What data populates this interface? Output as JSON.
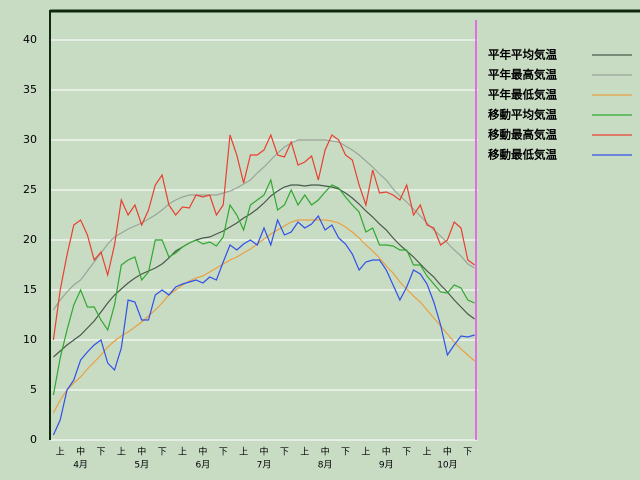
{
  "chart_data": {
    "type": "line",
    "categories": [
      null,
      "上",
      null,
      null,
      "中",
      null,
      null,
      "下",
      null,
      null,
      "上",
      null,
      null,
      "中",
      null,
      null,
      "下",
      null,
      null,
      "上",
      null,
      null,
      "中",
      null,
      null,
      "下",
      null,
      null,
      "上",
      null,
      null,
      "中",
      null,
      null,
      "下",
      null,
      null,
      "上",
      null,
      null,
      "中",
      null,
      null,
      "下",
      null,
      null,
      "上",
      null,
      null,
      "中",
      null,
      null,
      "下",
      null,
      null,
      "上",
      null,
      null,
      "中",
      null,
      null,
      "下",
      null
    ],
    "months": [
      "4月",
      "5月",
      "6月",
      "7月",
      "8月",
      "9月",
      "10月"
    ],
    "ylim": [
      0,
      43
    ],
    "yticks": [
      0,
      5,
      10,
      15,
      20,
      25,
      30,
      35,
      40
    ],
    "grid": true,
    "legend": "right",
    "series": [
      {
        "name": "平年平均気温",
        "color": "#4a584a",
        "values": [
          8.3,
          8.9,
          9.5,
          10,
          10.5,
          11.2,
          11.9,
          12.8,
          13.7,
          14.5,
          15.1,
          15.7,
          16.2,
          16.6,
          16.9,
          17.2,
          17.6,
          18.2,
          18.9,
          19.3,
          19.7,
          20,
          20.2,
          20.3,
          20.6,
          20.9,
          21.3,
          21.7,
          22.2,
          22.6,
          23.1,
          23.7,
          24.4,
          24.9,
          25.3,
          25.5,
          25.5,
          25.4,
          25.5,
          25.5,
          25.4,
          25.3,
          25.1,
          24.7,
          24.2,
          23.6,
          22.9,
          22.3,
          21.6,
          21,
          20.2,
          19.5,
          18.9,
          18.3,
          17.6,
          16.9,
          16.3,
          15.5,
          14.8,
          14,
          13.3,
          12.6,
          12.1
        ]
      },
      {
        "name": "平年最高気温",
        "color": "#9aa49a",
        "values": [
          13,
          14,
          14.8,
          15.5,
          16,
          16.9,
          17.8,
          18.7,
          19.6,
          20.3,
          20.7,
          21.1,
          21.4,
          21.7,
          22.1,
          22.5,
          23,
          23.6,
          24,
          24.3,
          24.5,
          24.5,
          24.5,
          24.5,
          24.5,
          24.7,
          24.9,
          25.2,
          25.6,
          26,
          26.7,
          27.3,
          28,
          28.7,
          29.3,
          29.7,
          30,
          30,
          30,
          30,
          30,
          29.9,
          29.8,
          29.4,
          29,
          28.5,
          27.9,
          27.3,
          26.6,
          26,
          25.1,
          24.4,
          23.8,
          23.1,
          22.4,
          21.7,
          21,
          20.4,
          19.7,
          19,
          18.4,
          17.6,
          17.2
        ]
      },
      {
        "name": "平年最低気温",
        "color": "#e8a040",
        "values": [
          2.7,
          4,
          5,
          5.7,
          6.3,
          7.1,
          7.8,
          8.5,
          9.3,
          9.9,
          10.4,
          10.8,
          11.3,
          11.8,
          12.4,
          13,
          13.7,
          14.5,
          15,
          15.5,
          15.9,
          16.2,
          16.4,
          16.8,
          17.2,
          17.6,
          18,
          18.3,
          18.7,
          19.1,
          19.6,
          20.1,
          20.6,
          21,
          21.4,
          21.8,
          22,
          22,
          22,
          22,
          22,
          21.9,
          21.7,
          21.3,
          20.8,
          20.2,
          19.5,
          18.9,
          18.2,
          17.4,
          16.7,
          15.8,
          15.1,
          14.4,
          13.8,
          13,
          12.2,
          11.4,
          10.6,
          9.8,
          9.1,
          8.5,
          7.9
        ]
      },
      {
        "name": "移動平均気温",
        "color": "#30a830",
        "values": [
          4.5,
          8.2,
          11,
          13.5,
          15,
          13.3,
          13.3,
          12,
          11,
          13.5,
          17.5,
          18,
          18.3,
          16,
          16.8,
          20,
          20,
          18.3,
          18.7,
          19.3,
          19.7,
          20,
          19.6,
          19.8,
          19.4,
          20.3,
          23.5,
          22.5,
          21,
          23.5,
          24,
          24.5,
          26,
          23,
          23.5,
          25,
          23.5,
          24.5,
          23.5,
          24,
          24.8,
          25.5,
          25.2,
          24.3,
          23.5,
          22.8,
          20.8,
          21.2,
          19.5,
          19.5,
          19.4,
          19,
          19,
          17.5,
          17.5,
          16.4,
          15.6,
          14.8,
          14.7,
          15.5,
          15.2,
          14,
          13.7
        ]
      },
      {
        "name": "移動最高気温",
        "color": "#e84030",
        "values": [
          10,
          15,
          18.5,
          21.5,
          22,
          20.5,
          18,
          18.8,
          16.5,
          19.5,
          24,
          22.5,
          23.5,
          21.5,
          23,
          25.5,
          26.5,
          23.5,
          22.5,
          23.3,
          23.2,
          24.5,
          24.3,
          24.5,
          22.5,
          23.5,
          30.5,
          28.5,
          25.7,
          28.5,
          28.5,
          29,
          30.5,
          28.5,
          28.3,
          29.8,
          27.5,
          27.8,
          28.4,
          26,
          29,
          30.5,
          30,
          28.5,
          28,
          25.5,
          23.5,
          27,
          24.7,
          24.8,
          24.5,
          24,
          25.5,
          22.5,
          23.5,
          21.5,
          21.2,
          19.5,
          20,
          21.8,
          21.2,
          18,
          17.5
        ]
      },
      {
        "name": "移動最低気温",
        "color": "#3050e8",
        "values": [
          0.5,
          2,
          5,
          6,
          8,
          8.8,
          9.5,
          10,
          7.7,
          7,
          9.2,
          14,
          13.8,
          12,
          12,
          14.5,
          15,
          14.5,
          15.3,
          15.6,
          15.8,
          16,
          15.7,
          16.3,
          16,
          17.8,
          19.5,
          19,
          19.6,
          20,
          19.5,
          21.2,
          19.5,
          22,
          20.5,
          20.8,
          21.8,
          21.2,
          21.6,
          22.4,
          21,
          21.5,
          20.2,
          19.6,
          18.6,
          17,
          17.8,
          18,
          18,
          17,
          15.5,
          14,
          15.3,
          17,
          16.6,
          15.6,
          13.8,
          11.5,
          8.5,
          9.5,
          10.4,
          10.3,
          10.5
        ]
      }
    ]
  }
}
